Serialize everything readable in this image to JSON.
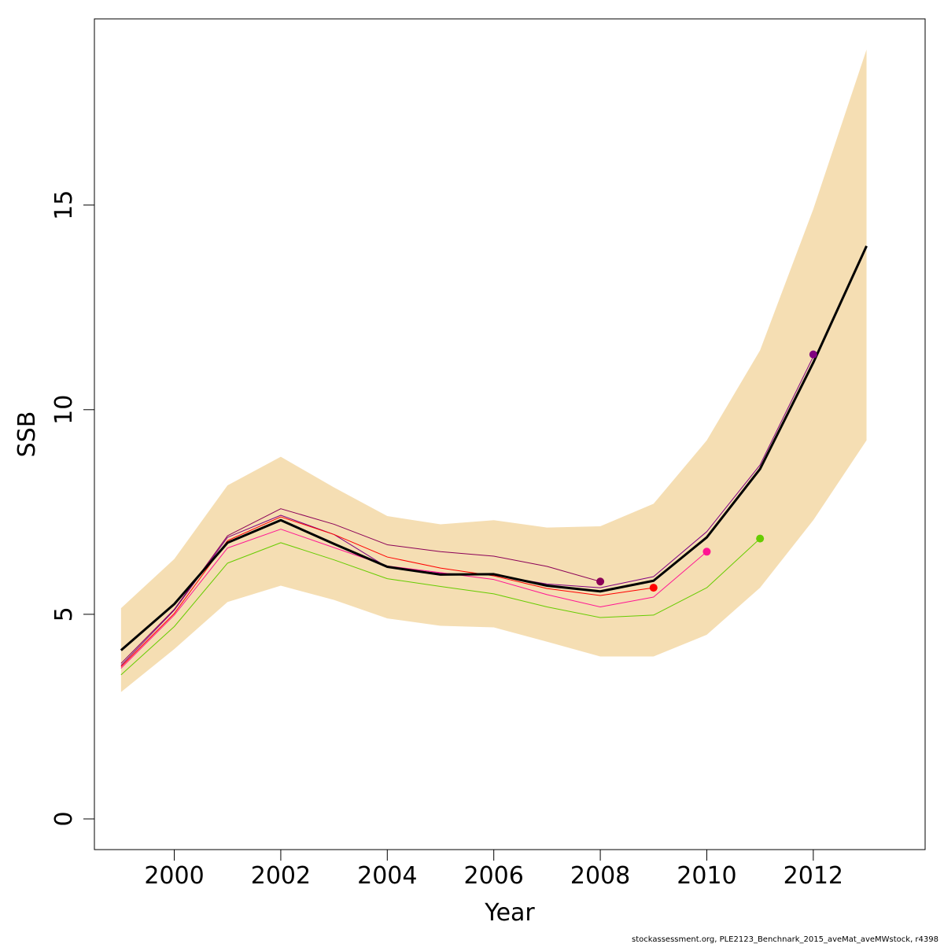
{
  "chart_data": {
    "type": "line",
    "xlabel": "Year",
    "ylabel": "SSB",
    "xlim": [
      1998.5,
      2014.1
    ],
    "ylim": [
      -0.75,
      19.55
    ],
    "x_ticks": [
      2000,
      2002,
      2004,
      2006,
      2008,
      2010,
      2012
    ],
    "y_ticks": [
      0,
      5,
      10,
      15
    ],
    "x_tick_labels": [
      "2000",
      "2002",
      "2004",
      "2006",
      "2008",
      "2010",
      "2012"
    ],
    "y_tick_labels": [
      "0",
      "5",
      "10",
      "15"
    ],
    "grid": false,
    "confidence_band": {
      "color": "#f5deb3",
      "x": [
        1999,
        2000,
        2001,
        2002,
        2003,
        2004,
        2005,
        2006,
        2007,
        2008,
        2009,
        2010,
        2011,
        2012,
        2013
      ],
      "lower": [
        3.1,
        4.15,
        5.3,
        5.7,
        5.35,
        4.9,
        4.72,
        4.68,
        4.33,
        3.97,
        3.97,
        4.5,
        5.65,
        7.3,
        9.25
      ],
      "upper": [
        5.15,
        6.35,
        8.15,
        8.85,
        8.1,
        7.4,
        7.2,
        7.3,
        7.12,
        7.15,
        7.7,
        9.25,
        11.45,
        14.9,
        18.8
      ]
    },
    "series": [
      {
        "color": "#000000",
        "x": [
          1999,
          2000,
          2001,
          2002,
          2003,
          2004,
          2005,
          2006,
          2007,
          2008,
          2009,
          2010,
          2011,
          2012,
          2013
        ],
        "values": [
          4.12,
          5.25,
          6.75,
          7.3,
          6.72,
          6.16,
          5.97,
          5.98,
          5.7,
          5.56,
          5.82,
          6.88,
          8.55,
          11.15,
          14.0
        ]
      },
      {
        "color": "#800080",
        "x": [
          1999,
          2000,
          2001,
          2002,
          2003,
          2004,
          2005,
          2006,
          2007,
          2008,
          2009,
          2010,
          2011,
          2012
        ],
        "values": [
          3.75,
          5.1,
          6.88,
          7.42,
          6.95,
          6.15,
          6.0,
          5.96,
          5.74,
          5.65,
          5.92,
          7.02,
          8.65,
          11.3
        ],
        "endpoint": [
          2012,
          11.35
        ]
      },
      {
        "color": "#8b0057",
        "x": [
          1999,
          2000,
          2001,
          2002,
          2003,
          2004,
          2005,
          2006,
          2007,
          2008
        ],
        "values": [
          3.8,
          5.12,
          6.92,
          7.58,
          7.2,
          6.7,
          6.53,
          6.42,
          6.17,
          5.8
        ],
        "endpoint": [
          2008,
          5.8
        ]
      },
      {
        "color": "#ff0000",
        "x": [
          1999,
          2000,
          2001,
          2002,
          2003,
          2004,
          2005,
          2006,
          2007,
          2008,
          2009
        ],
        "values": [
          3.72,
          5.02,
          6.8,
          7.38,
          6.95,
          6.4,
          6.13,
          5.94,
          5.63,
          5.46,
          5.65
        ],
        "endpoint": [
          2009,
          5.65
        ]
      },
      {
        "color": "#ff1493",
        "x": [
          1999,
          2000,
          2001,
          2002,
          2003,
          2004,
          2005,
          2006,
          2007,
          2008,
          2009,
          2010
        ],
        "values": [
          3.68,
          4.98,
          6.62,
          7.08,
          6.63,
          6.18,
          6.02,
          5.85,
          5.48,
          5.18,
          5.42,
          6.53
        ],
        "endpoint": [
          2010,
          6.53
        ]
      },
      {
        "color": "#66cc00",
        "x": [
          1999,
          2000,
          2001,
          2002,
          2003,
          2004,
          2005,
          2006,
          2007,
          2008,
          2009,
          2010,
          2011
        ],
        "values": [
          3.52,
          4.7,
          6.25,
          6.75,
          6.33,
          5.87,
          5.68,
          5.5,
          5.18,
          4.92,
          4.98,
          5.65,
          6.85
        ],
        "endpoint": [
          2011,
          6.85
        ]
      }
    ]
  },
  "footer_text": "stockassessment.org, PLE2123_Benchnark_2015_aveMat_aveMWstock, r4398"
}
